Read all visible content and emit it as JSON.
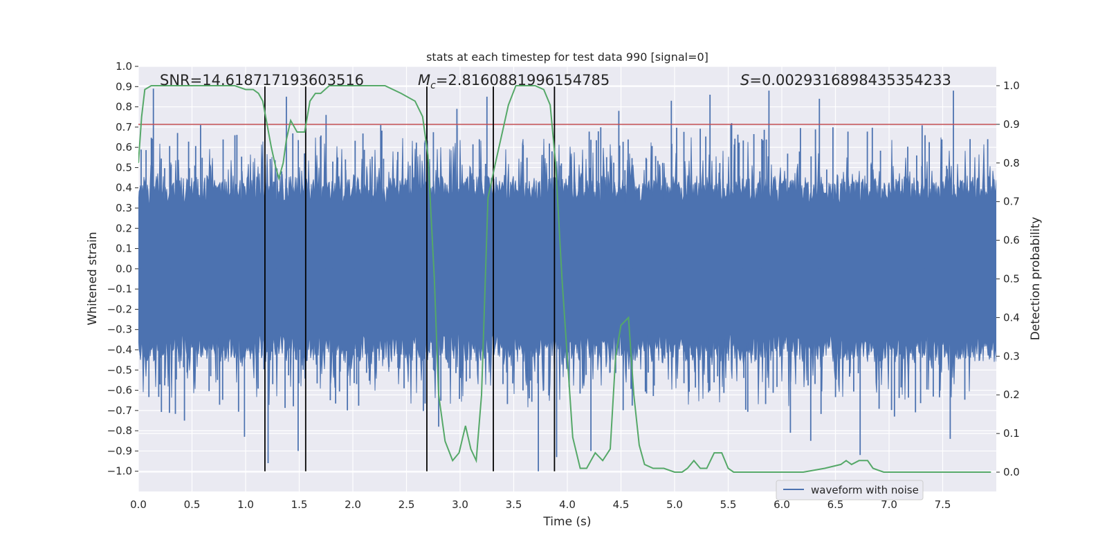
{
  "chart_data": {
    "type": "line",
    "title": "stats at each timestep for test data 990 [signal=0]",
    "xlabel": "Time (s)",
    "ylabel": "Whitened strain",
    "y2label": "Detection probability",
    "xlim": [
      0.0,
      8.0
    ],
    "ylim": [
      -1.1,
      1.0
    ],
    "y2lim": [
      -0.05,
      1.05
    ],
    "xticks": [
      0.0,
      0.5,
      1.0,
      1.5,
      2.0,
      2.5,
      3.0,
      3.5,
      4.0,
      4.5,
      5.0,
      5.5,
      6.0,
      6.5,
      7.0,
      7.5
    ],
    "xtick_labels": [
      "0.0",
      "0.5",
      "1.0",
      "1.5",
      "2.0",
      "2.5",
      "3.0",
      "3.5",
      "4.0",
      "4.5",
      "5.0",
      "5.5",
      "6.0",
      "6.5",
      "7.0",
      "7.5"
    ],
    "yticks": [
      1.0,
      0.9,
      0.8,
      0.7,
      0.6,
      0.5,
      0.4,
      0.3,
      0.2,
      0.1,
      0.0,
      -0.1,
      -0.2,
      -0.3,
      -0.4,
      -0.5,
      -0.6,
      -0.7,
      -0.8,
      -0.9,
      -1.0
    ],
    "ytick_labels": [
      "1.0",
      "0.9",
      "0.8",
      "0.7",
      "0.6",
      "0.5",
      "0.4",
      "0.3",
      "0.2",
      "0.1",
      "0.0",
      "−0.1",
      "−0.2",
      "−0.3",
      "−0.4",
      "−0.5",
      "−0.6",
      "−0.7",
      "−0.8",
      "−0.9",
      "−1.0"
    ],
    "y2ticks": [
      1.0,
      0.9,
      0.8,
      0.7,
      0.6,
      0.5,
      0.4,
      0.3,
      0.2,
      0.1,
      0.0
    ],
    "y2tick_labels": [
      "1.0",
      "0.9",
      "0.8",
      "0.7",
      "0.6",
      "0.5",
      "0.4",
      "0.3",
      "0.2",
      "0.1",
      "0.0"
    ],
    "grid": true,
    "legend": {
      "position": "lower-right",
      "entries": [
        "waveform with noise"
      ]
    },
    "annotations": {
      "snr": "SNR=14.618717193603516",
      "mc_prefix": "M",
      "mc_sub": "c",
      "mc_value": "=2.8160881996154785",
      "s_prefix": "S",
      "s_value": "=0.0029316898435354233"
    },
    "threshold": 0.9,
    "event_markers_x": [
      1.18,
      1.56,
      2.69,
      3.31,
      3.88
    ],
    "waveform": {
      "name": "waveform with noise",
      "color": "#4c72b0",
      "sample_rate_hz": 2048,
      "core_amplitude": 0.32,
      "spikes_up": [
        [
          0.14,
          0.89
        ],
        [
          0.58,
          0.71
        ],
        [
          0.9,
          0.66
        ],
        [
          1.38,
          0.85
        ],
        [
          1.75,
          0.76
        ],
        [
          2.26,
          0.71
        ],
        [
          2.97,
          0.79
        ],
        [
          3.25,
          0.85
        ],
        [
          4.48,
          0.78
        ],
        [
          4.97,
          0.83
        ],
        [
          5.33,
          0.86
        ],
        [
          5.88,
          0.88
        ],
        [
          6.35,
          0.84
        ],
        [
          7.6,
          0.88
        ],
        [
          7.92,
          0.64
        ]
      ],
      "spikes_down": [
        [
          0.43,
          -0.75
        ],
        [
          0.99,
          -0.83
        ],
        [
          1.21,
          -0.96
        ],
        [
          1.49,
          -0.9
        ],
        [
          2.8,
          -0.78
        ],
        [
          3.73,
          -1.0
        ],
        [
          3.9,
          -0.93
        ],
        [
          4.22,
          -0.9
        ],
        [
          6.08,
          -0.81
        ],
        [
          6.27,
          -0.85
        ],
        [
          6.73,
          -0.92
        ],
        [
          7.05,
          -0.73
        ],
        [
          7.57,
          -0.84
        ]
      ]
    },
    "probability_series": {
      "name": "detection probability",
      "color": "#55a868",
      "x": [
        0.0,
        0.03,
        0.06,
        0.12,
        0.2,
        0.3,
        0.5,
        0.7,
        0.9,
        1.0,
        1.07,
        1.12,
        1.16,
        1.2,
        1.24,
        1.28,
        1.31,
        1.35,
        1.38,
        1.42,
        1.48,
        1.55,
        1.6,
        1.65,
        1.7,
        1.78,
        1.9,
        2.1,
        2.3,
        2.45,
        2.58,
        2.65,
        2.7,
        2.76,
        2.8,
        2.86,
        2.93,
        2.99,
        3.05,
        3.1,
        3.15,
        3.2,
        3.26,
        3.33,
        3.41,
        3.45,
        3.52,
        3.6,
        3.7,
        3.78,
        3.84,
        3.89,
        3.95,
        4.05,
        4.12,
        4.18,
        4.22,
        4.26,
        4.33,
        4.4,
        4.45,
        4.5,
        4.57,
        4.62,
        4.67,
        4.72,
        4.8,
        4.9,
        5.0,
        5.07,
        5.12,
        5.18,
        5.24,
        5.3,
        5.37,
        5.44,
        5.5,
        5.55,
        5.65,
        5.8,
        6.0,
        6.2,
        6.4,
        6.55,
        6.6,
        6.65,
        6.72,
        6.8,
        6.85,
        6.95,
        7.2,
        7.5,
        7.7,
        7.95
      ],
      "y": [
        0.8,
        0.92,
        0.99,
        1.0,
        1.0,
        1.0,
        1.0,
        1.0,
        1.0,
        0.99,
        0.99,
        0.98,
        0.96,
        0.9,
        0.84,
        0.79,
        0.76,
        0.8,
        0.86,
        0.91,
        0.88,
        0.88,
        0.96,
        0.98,
        0.98,
        1.0,
        1.0,
        1.0,
        1.0,
        0.98,
        0.96,
        0.92,
        0.82,
        0.5,
        0.2,
        0.08,
        0.03,
        0.05,
        0.12,
        0.06,
        0.03,
        0.2,
        0.71,
        0.8,
        0.9,
        0.95,
        1.0,
        1.0,
        1.0,
        0.99,
        0.95,
        0.8,
        0.5,
        0.09,
        0.01,
        0.01,
        0.03,
        0.05,
        0.03,
        0.06,
        0.3,
        0.38,
        0.4,
        0.2,
        0.07,
        0.02,
        0.01,
        0.01,
        0.0,
        0.0,
        0.01,
        0.03,
        0.01,
        0.01,
        0.05,
        0.05,
        0.01,
        0.0,
        0.0,
        0.0,
        0.0,
        0.0,
        0.01,
        0.02,
        0.03,
        0.02,
        0.03,
        0.03,
        0.01,
        0.0,
        0.0,
        0.0,
        0.0,
        0.0
      ]
    },
    "colors": {
      "background": "#eaeaf2",
      "grid": "#ffffff",
      "threshold": "#c44e52",
      "marker": "#000000",
      "text": "#262626"
    }
  }
}
